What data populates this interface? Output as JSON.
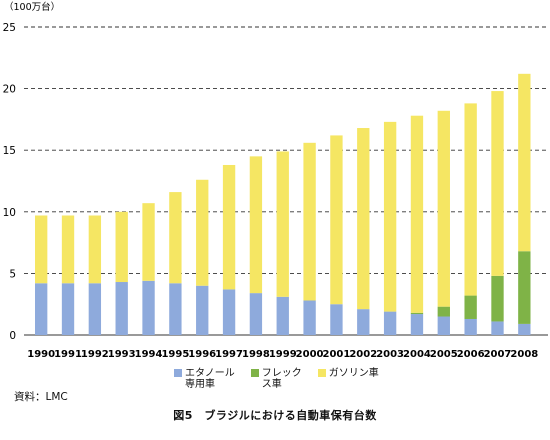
{
  "chart_data": {
    "type": "bar",
    "stacked": true,
    "unit_label": "（100万台）",
    "ylim": [
      0,
      25
    ],
    "yticks": [
      0,
      5,
      10,
      15,
      20,
      25
    ],
    "grid": "dashed horizontal",
    "categories": [
      "1990",
      "1991",
      "1992",
      "1993",
      "1994",
      "1995",
      "1996",
      "1997",
      "1998",
      "1999",
      "2000",
      "2001",
      "2002",
      "2003",
      "2004",
      "2005",
      "2006",
      "2007",
      "2008"
    ],
    "series": [
      {
        "name": "エタノール専用車",
        "color": "#8eaadc",
        "values": [
          4.2,
          4.2,
          4.2,
          4.3,
          4.4,
          4.2,
          4.0,
          3.7,
          3.4,
          3.1,
          2.8,
          2.5,
          2.1,
          1.9,
          1.7,
          1.5,
          1.3,
          1.1,
          0.9
        ]
      },
      {
        "name": "フレックス車",
        "color": "#7fb347",
        "values": [
          0,
          0,
          0,
          0,
          0,
          0,
          0,
          0,
          0,
          0,
          0,
          0,
          0,
          0,
          0.1,
          0.8,
          1.9,
          3.7,
          5.9
        ]
      },
      {
        "name": "ガソリン車",
        "color": "#f5e663",
        "values": [
          5.5,
          5.5,
          5.5,
          5.7,
          6.3,
          7.4,
          8.6,
          10.1,
          11.1,
          11.8,
          12.8,
          13.7,
          14.7,
          15.4,
          16.0,
          15.9,
          15.6,
          15.0,
          14.4
        ]
      }
    ],
    "legend": {
      "position": "bottom",
      "items": [
        {
          "line1": "エタノール",
          "line2": "専用車",
          "color": "#8eaadc"
        },
        {
          "line1": "フレック",
          "line2": "ス車",
          "color": "#7fb347"
        },
        {
          "line1": "ガソリン車",
          "line2": "",
          "color": "#f5e663"
        }
      ]
    }
  },
  "source": "資料：LMC",
  "caption": "図5　ブラジルにおける自動車保有台数"
}
